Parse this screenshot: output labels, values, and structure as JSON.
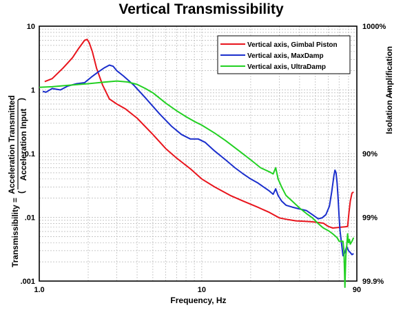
{
  "chart_data": {
    "type": "line",
    "title": "Vertical Transmissibility",
    "xlabel": "Frequency, Hz",
    "ylabel": "Transmissibility =",
    "ylabel_fraction": {
      "numerator": "Acceleration Transmitted",
      "denominator": "Acceleration Input"
    },
    "right_axis": {
      "ticks": [
        "1000%",
        "90%",
        "99%",
        "99.9%"
      ],
      "label_upper": "Amplification",
      "label_lower": "Isolation"
    },
    "x_scale": "log",
    "y_scale": "log",
    "xlim": [
      1.0,
      90
    ],
    "ylim": [
      0.001,
      10
    ],
    "x_ticks": [
      1.0,
      10,
      90
    ],
    "x_tick_labels": [
      "1.0",
      "10",
      "90"
    ],
    "y_ticks": [
      0.001,
      0.01,
      0.1,
      1,
      10
    ],
    "y_tick_labels": [
      ".001",
      ".01",
      "0.1",
      "1",
      "10"
    ],
    "grid": true,
    "legend_position": "top-right",
    "series": [
      {
        "name": "Vertical axis, Gimbal Piston",
        "color": "#e8141c",
        "x": [
          1.08,
          1.2,
          1.4,
          1.6,
          1.75,
          1.9,
          1.97,
          2.03,
          2.12,
          2.25,
          2.45,
          2.7,
          3.0,
          3.4,
          4.0,
          5.0,
          6.0,
          7.0,
          8.5,
          10,
          12,
          15,
          18,
          22,
          26,
          30,
          34,
          38,
          42,
          48,
          52,
          56,
          60,
          64,
          68,
          72,
          76,
          79,
          80.5,
          82,
          84,
          86
        ],
        "y": [
          1.35,
          1.5,
          2.2,
          3.2,
          4.5,
          6.0,
          6.2,
          5.5,
          4.0,
          2.2,
          1.2,
          0.72,
          0.6,
          0.5,
          0.36,
          0.2,
          0.12,
          0.085,
          0.058,
          0.04,
          0.03,
          0.022,
          0.018,
          0.0145,
          0.012,
          0.0098,
          0.0092,
          0.0088,
          0.0087,
          0.0085,
          0.0083,
          0.0081,
          0.0072,
          0.0068,
          0.0069,
          0.007,
          0.0071,
          0.0072,
          0.012,
          0.018,
          0.024,
          0.025
        ]
      },
      {
        "name": "Vertical axis, MaxDamp",
        "color": "#1a2ecc",
        "x": [
          1.05,
          1.1,
          1.2,
          1.35,
          1.5,
          1.7,
          1.9,
          2.1,
          2.3,
          2.5,
          2.7,
          2.85,
          3.0,
          3.3,
          3.8,
          4.5,
          5.5,
          6.5,
          7.5,
          8.5,
          9.5,
          10.5,
          12,
          14,
          16,
          18,
          20,
          22,
          24,
          26,
          27.5,
          28.5,
          29.5,
          31,
          33,
          36,
          40,
          44,
          48,
          52,
          55,
          58,
          61,
          63,
          65,
          66,
          67,
          68,
          69,
          70,
          71,
          72,
          74,
          76,
          78,
          80,
          82,
          84,
          86
        ],
        "y": [
          0.95,
          0.92,
          1.05,
          1.0,
          1.15,
          1.25,
          1.3,
          1.6,
          1.9,
          2.2,
          2.45,
          2.35,
          2.0,
          1.65,
          1.2,
          0.75,
          0.42,
          0.27,
          0.2,
          0.17,
          0.17,
          0.15,
          0.11,
          0.08,
          0.06,
          0.048,
          0.04,
          0.035,
          0.03,
          0.026,
          0.023,
          0.028,
          0.022,
          0.018,
          0.0155,
          0.0145,
          0.0135,
          0.0128,
          0.011,
          0.0095,
          0.0098,
          0.011,
          0.015,
          0.025,
          0.045,
          0.055,
          0.05,
          0.035,
          0.02,
          0.01,
          0.006,
          0.0045,
          0.0025,
          0.0028,
          0.0035,
          0.003,
          0.0028,
          0.0026,
          0.0027
        ]
      },
      {
        "name": "Vertical axis, UltraDamp",
        "color": "#22d022",
        "x": [
          1.0,
          1.2,
          1.5,
          2.0,
          2.5,
          3.0,
          3.5,
          4.0,
          4.5,
          5.0,
          6.0,
          7.0,
          8.0,
          9.0,
          10,
          12,
          14,
          17,
          20,
          23,
          26,
          27.5,
          28.5,
          29.5,
          31,
          33,
          36,
          40,
          44,
          48,
          52,
          56,
          60,
          64,
          68,
          70,
          72,
          74,
          75,
          76,
          77,
          78,
          79,
          80,
          81,
          82,
          84,
          86
        ],
        "y": [
          1.1,
          1.12,
          1.18,
          1.25,
          1.32,
          1.38,
          1.33,
          1.22,
          1.05,
          0.9,
          0.62,
          0.47,
          0.38,
          0.32,
          0.28,
          0.21,
          0.16,
          0.11,
          0.08,
          0.06,
          0.052,
          0.048,
          0.06,
          0.04,
          0.03,
          0.022,
          0.018,
          0.014,
          0.0115,
          0.0098,
          0.008,
          0.0068,
          0.0062,
          0.0055,
          0.0048,
          0.0042,
          0.0042,
          0.0042,
          0.003,
          0.0008,
          0.0025,
          0.0035,
          0.0055,
          0.004,
          0.0045,
          0.0038,
          0.0042,
          0.0048
        ]
      }
    ]
  }
}
